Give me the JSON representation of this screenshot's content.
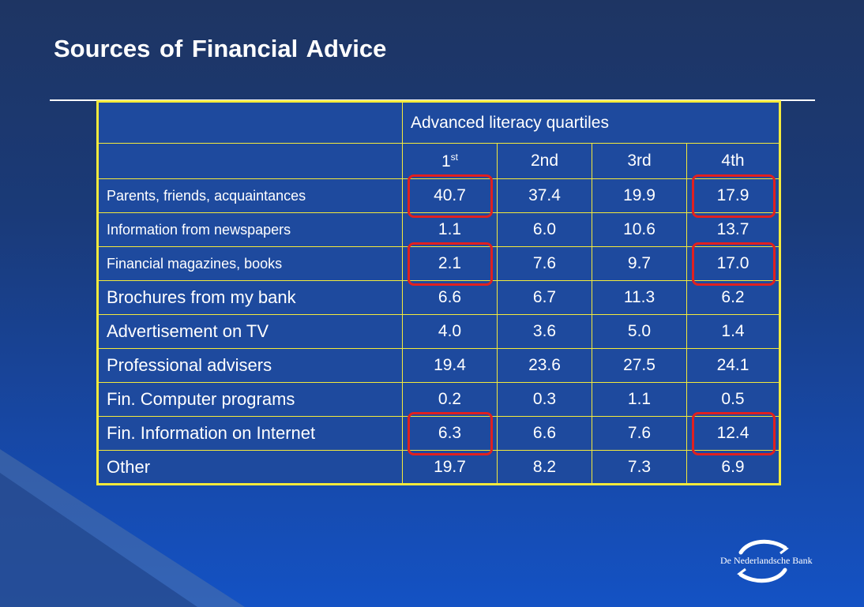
{
  "slide": {
    "title": "Sources of Financial Advice"
  },
  "table": {
    "group_header": "Advanced literacy quartiles",
    "quartiles": [
      {
        "base": "1",
        "sup": "st"
      },
      {
        "base": "2nd",
        "sup": ""
      },
      {
        "base": "3rd",
        "sup": ""
      },
      {
        "base": "4th",
        "sup": ""
      }
    ],
    "rows": [
      {
        "label": "Parents, friends, acquaintances",
        "values": [
          "40.7",
          "37.4",
          "19.9",
          "17.9"
        ]
      },
      {
        "label": "Information from newspapers",
        "values": [
          "1.1",
          "6.0",
          "10.6",
          "13.7"
        ]
      },
      {
        "label": "Financial magazines, books",
        "values": [
          "2.1",
          "7.6",
          "9.7",
          "17.0"
        ]
      },
      {
        "label": "Brochures from my bank",
        "values": [
          "6.6",
          "6.7",
          "11.3",
          "6.2"
        ]
      },
      {
        "label": "Advertisement on TV",
        "values": [
          "4.0",
          "3.6",
          "5.0",
          "1.4"
        ]
      },
      {
        "label": "Professional advisers",
        "values": [
          "19.4",
          "23.6",
          "27.5",
          "24.1"
        ]
      },
      {
        "label": "Fin. Computer programs",
        "values": [
          "0.2",
          "0.3",
          "1.1",
          "0.5"
        ]
      },
      {
        "label": "Fin. Information on Internet",
        "values": [
          "6.3",
          "6.6",
          "7.6",
          "12.4"
        ]
      },
      {
        "label": "Other",
        "values": [
          "19.7",
          "8.2",
          "7.3",
          "6.9"
        ]
      }
    ],
    "highlighted_cells": [
      {
        "row": 0,
        "col": 0
      },
      {
        "row": 0,
        "col": 3
      },
      {
        "row": 2,
        "col": 0
      },
      {
        "row": 2,
        "col": 3
      },
      {
        "row": 7,
        "col": 0
      },
      {
        "row": 7,
        "col": 3
      }
    ],
    "highlight_color": "#e02020",
    "border_color": "#f4ea3c"
  },
  "logo": {
    "text": "De Nederlandsche Bank",
    "icon": "dnb-swirl-logo"
  }
}
